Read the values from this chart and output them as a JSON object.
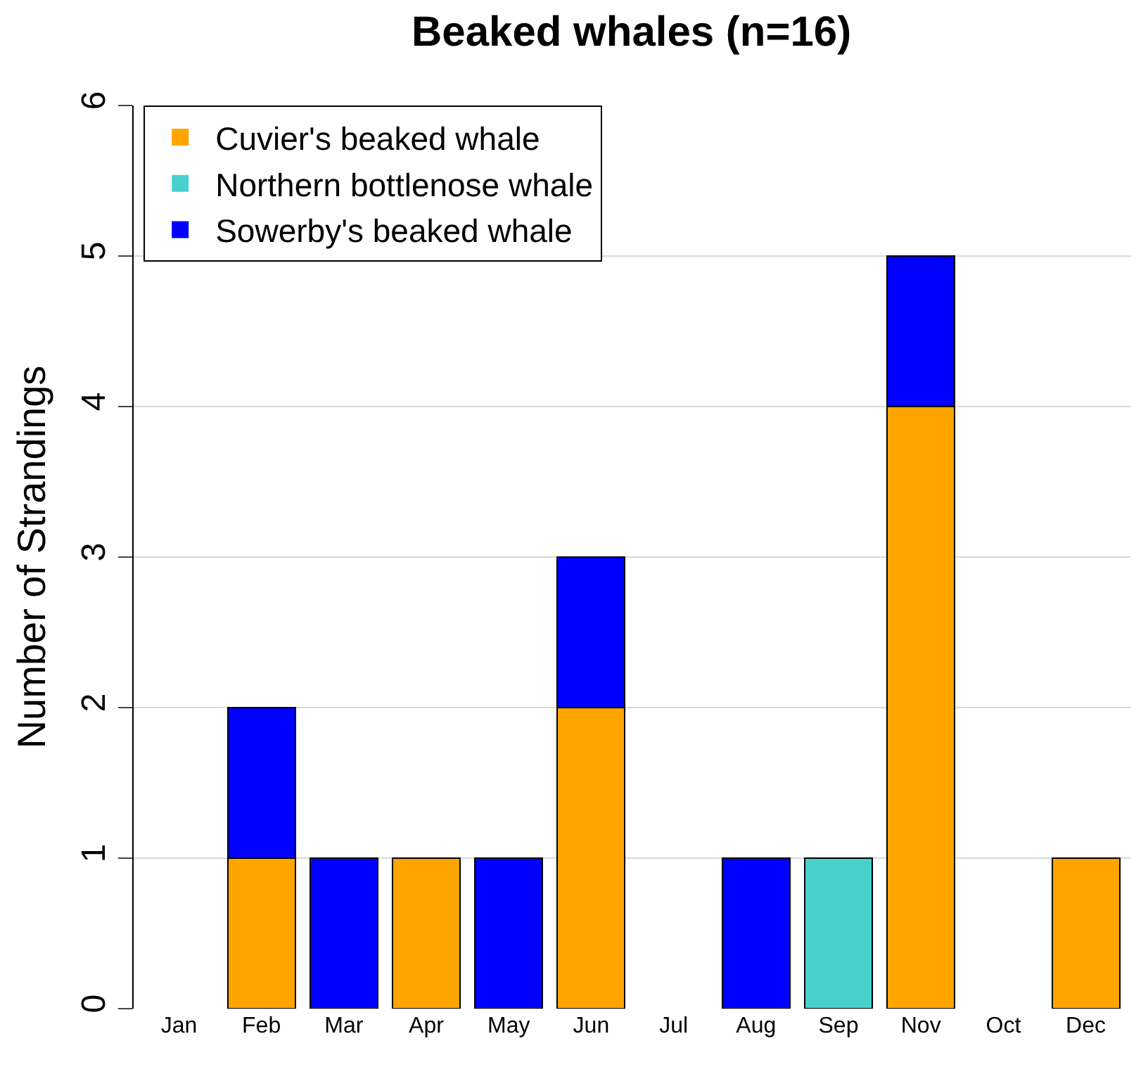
{
  "chart_data": {
    "type": "bar",
    "stacked": true,
    "title": "Beaked whales (n=16)",
    "ylabel": "Number of Strandings",
    "categories": [
      "Jan",
      "Feb",
      "Mar",
      "Apr",
      "May",
      "Jun",
      "Jul",
      "Aug",
      "Sep",
      "Nov",
      "Oct",
      "Dec"
    ],
    "series": [
      {
        "name": "Cuvier's beaked whale",
        "color": "#ffa500",
        "values": [
          0,
          1,
          0,
          1,
          0,
          2,
          0,
          0,
          0,
          4,
          0,
          1
        ]
      },
      {
        "name": "Northern bottlenose whale",
        "color": "#48d1cc",
        "values": [
          0,
          0,
          0,
          0,
          0,
          0,
          0,
          0,
          1,
          0,
          0,
          0
        ]
      },
      {
        "name": "Sowerby's beaked whale",
        "color": "#0000ff",
        "values": [
          0,
          1,
          1,
          0,
          1,
          1,
          0,
          1,
          0,
          1,
          0,
          0
        ]
      }
    ],
    "ylim": [
      0,
      6
    ],
    "yticks": [
      0,
      1,
      2,
      3,
      4,
      5,
      6
    ],
    "grid": "y",
    "legend": "top left"
  }
}
